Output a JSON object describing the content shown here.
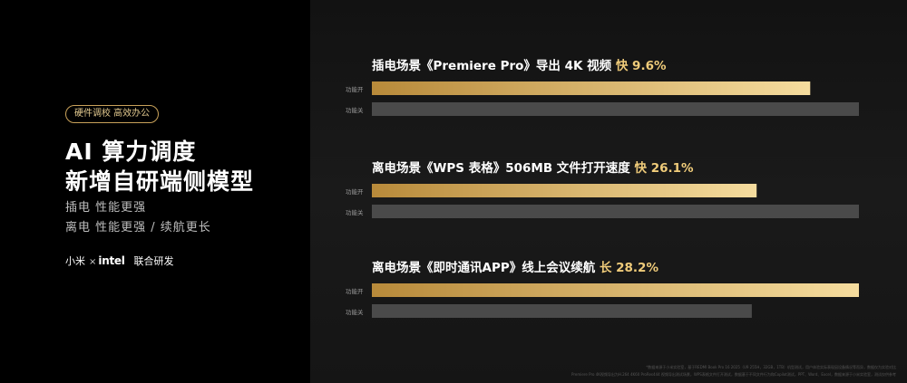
{
  "left": {
    "tag": "硬件调校 高效办公",
    "headline_line1": "AI 算力调度",
    "headline_line2": "新增自研端侧模型",
    "sub_line1": "插电 性能更强",
    "sub_line2": "离电 性能更强 / 续航更长",
    "partner_brand": "小米",
    "partner_times": "×",
    "partner_intel": "intel",
    "partner_label": "联合研发"
  },
  "colors": {
    "left_bg": "#000000",
    "gold_start": "#b88a3a",
    "gold_end": "#f5dc9e",
    "gray_bar": "#4a4a4a",
    "highlight": "#f0cc7a"
  },
  "chart_data": {
    "type": "bar",
    "orientation": "horizontal",
    "scale_note": "values normalized to the longer bar in each group (=1.0)",
    "groups": [
      {
        "title_main": "插电场景《Premiere Pro》导出 4K 视频",
        "title_highlight": "快 9.6%",
        "bars": [
          {
            "label": "功能开",
            "value": 0.9,
            "style": "gold"
          },
          {
            "label": "功能关",
            "value": 1.0,
            "style": "gray"
          }
        ]
      },
      {
        "title_main": "离电场景《WPS 表格》506MB 文件打开速度",
        "title_highlight": "快 26.1%",
        "bars": [
          {
            "label": "功能开",
            "value": 0.79,
            "style": "gold"
          },
          {
            "label": "功能关",
            "value": 1.0,
            "style": "gray"
          }
        ]
      },
      {
        "title_main": "离电场景《即时通讯APP》线上会议续航",
        "title_highlight": "长 28.2%",
        "bars": [
          {
            "label": "功能开",
            "value": 1.0,
            "style": "gold"
          },
          {
            "label": "功能关",
            "value": 0.78,
            "style": "gray"
          }
        ]
      }
    ]
  },
  "footnote": {
    "line1": "*数据来源于小米实验室，基于REDMI Book Pro 16 2025（U9 255H，32GB，1TB）机型测试，用户体验实际表现因设备情况等而异，数据仅为实验对比",
    "line2": "Premiere Pro 4K视频导出为H.264 4K60 ProRes444 视频导出测试场景，WPS表格文件打开测试，数据基于不同文件行为和Copilot测试，PPT、Word、Excel，数据来源于小米实验室，测试仅供参考"
  }
}
